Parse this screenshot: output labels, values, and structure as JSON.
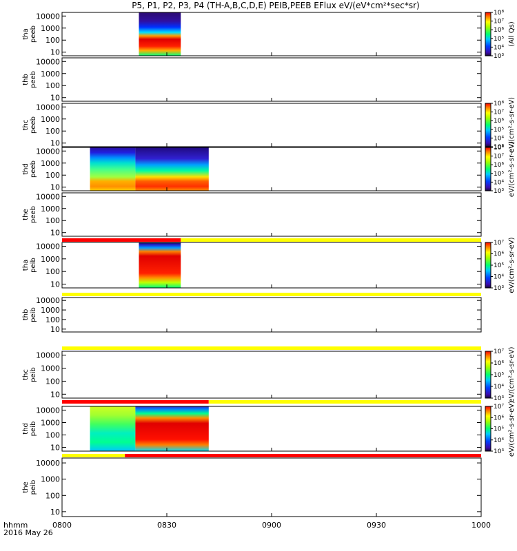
{
  "title": "P5, P1, P2, P3, P4 (TH-A,B,C,D,E) PEIB,PEEB EFlux eV/(eV*cm²*sec*sr)",
  "time_axis": {
    "label_line1": "hhmm",
    "label_line2": "2016 May 26",
    "ticks": [
      "0800",
      "0830",
      "0900",
      "0930",
      "1000"
    ],
    "start_min": 0,
    "end_min": 120
  },
  "colors": {
    "flag_red": "#ff0000",
    "flag_yellow": "#ffff00",
    "frame": "#000000"
  },
  "chart_data": {
    "type": "heatmap",
    "title": "P5, P1, P2, P3, P4 (TH-A,B,C,D,E) PEIB,PEEB EFlux eV/(eV*cm²*sec*sr)",
    "xlabel": "hhmm",
    "x_ticks": [
      "0800",
      "0830",
      "0900",
      "0930",
      "1000"
    ],
    "y_ticks": [
      "10",
      "100",
      "1000",
      "10000"
    ],
    "y_scale": "log",
    "panels": [
      {
        "probe": "tha",
        "instrument": "peeb",
        "ylabel_top": "tha",
        "ylabel_bottom": "peeb",
        "data_intervals_hhmm": [
          [
            "0822",
            "0834"
          ]
        ],
        "colorbar": {
          "label": "(All Qs)",
          "ticks": [
            "10³",
            "10⁴",
            "10⁵",
            "10⁶",
            "10⁷",
            "10⁸"
          ],
          "range_log": [
            3,
            8
          ]
        },
        "flag_bar": null,
        "pattern": "electron_a"
      },
      {
        "probe": "thb",
        "instrument": "peeb",
        "ylabel_top": "thb",
        "ylabel_bottom": "peeb",
        "data_intervals_hhmm": [],
        "colorbar": null,
        "flag_bar": null,
        "pattern": "none"
      },
      {
        "probe": "thc",
        "instrument": "peeb",
        "ylabel_top": "thc",
        "ylabel_bottom": "peeb",
        "data_intervals_hhmm": [],
        "colorbar": {
          "label": "eV/(cm²-s-sr-eV)",
          "ticks": [
            "10³",
            "10⁴",
            "10⁵",
            "10⁶",
            "10⁷",
            "10⁸"
          ],
          "range_log": [
            3,
            8
          ]
        },
        "flag_bar": null,
        "pattern": "none"
      },
      {
        "probe": "thd",
        "instrument": "peeb",
        "ylabel_top": "thd",
        "ylabel_bottom": "peeb",
        "data_intervals_hhmm": [
          [
            "0808",
            "0842"
          ]
        ],
        "colorbar": {
          "label": "eV/(cm²-s-sr-eV)",
          "ticks": [
            "10³",
            "10⁴",
            "10⁵",
            "10⁶",
            "10⁷",
            "10⁸"
          ],
          "range_log": [
            3,
            8
          ]
        },
        "flag_bar": null,
        "pattern": "electron_d"
      },
      {
        "probe": "the",
        "instrument": "peeb",
        "ylabel_top": "the",
        "ylabel_bottom": "peeb",
        "data_intervals_hhmm": [],
        "colorbar": null,
        "flag_bar": null,
        "pattern": "none"
      },
      {
        "probe": "tha",
        "instrument": "peib",
        "ylabel_top": "tha",
        "ylabel_bottom": "peib",
        "data_intervals_hhmm": [
          [
            "0822",
            "0834"
          ]
        ],
        "colorbar": {
          "label": "eV/(cm²-s-sr-eV)",
          "ticks": [
            "10³",
            "10⁴",
            "10⁵",
            "10⁶",
            "10⁷"
          ],
          "range_log": [
            3,
            7
          ]
        },
        "flag_bar": [
          [
            "0800",
            "0834",
            "red"
          ],
          [
            "0834",
            "1000",
            "yellow"
          ]
        ],
        "pattern": "ion_a"
      },
      {
        "probe": "thb",
        "instrument": "peib",
        "ylabel_top": "thb",
        "ylabel_bottom": "peib",
        "data_intervals_hhmm": [],
        "colorbar": null,
        "flag_bar": [
          [
            "0800",
            "1000",
            "yellow"
          ]
        ],
        "pattern": "none"
      },
      {
        "probe": "thc",
        "instrument": "peib",
        "ylabel_top": "thc",
        "ylabel_bottom": "peib",
        "data_intervals_hhmm": [],
        "colorbar": {
          "label": "eV/(cm²-s-sr-eV)",
          "ticks": [
            "10³",
            "10⁴",
            "10⁵",
            "10⁶",
            "10⁷"
          ],
          "range_log": [
            3,
            7
          ]
        },
        "flag_bar": [
          [
            "0800",
            "1000",
            "yellow"
          ]
        ],
        "pattern": "none"
      },
      {
        "probe": "thd",
        "instrument": "peib",
        "ylabel_top": "thd",
        "ylabel_bottom": "peib",
        "data_intervals_hhmm": [
          [
            "0808",
            "0842"
          ]
        ],
        "colorbar": {
          "label": "eV/(cm²-s-sr-eV)",
          "ticks": [
            "10³",
            "10⁴",
            "10⁵",
            "10⁶",
            "10⁷"
          ],
          "range_log": [
            3,
            7
          ]
        },
        "flag_bar": [
          [
            "0800",
            "0842",
            "red"
          ],
          [
            "0842",
            "1000",
            "yellow"
          ]
        ],
        "pattern": "ion_d"
      },
      {
        "probe": "the",
        "instrument": "peib",
        "ylabel_top": "the",
        "ylabel_bottom": "peib",
        "data_intervals_hhmm": [],
        "colorbar": null,
        "flag_bar": [
          [
            "0800",
            "0818",
            "yellow"
          ],
          [
            "0818",
            "1000",
            "red"
          ]
        ],
        "pattern": "none"
      }
    ]
  }
}
